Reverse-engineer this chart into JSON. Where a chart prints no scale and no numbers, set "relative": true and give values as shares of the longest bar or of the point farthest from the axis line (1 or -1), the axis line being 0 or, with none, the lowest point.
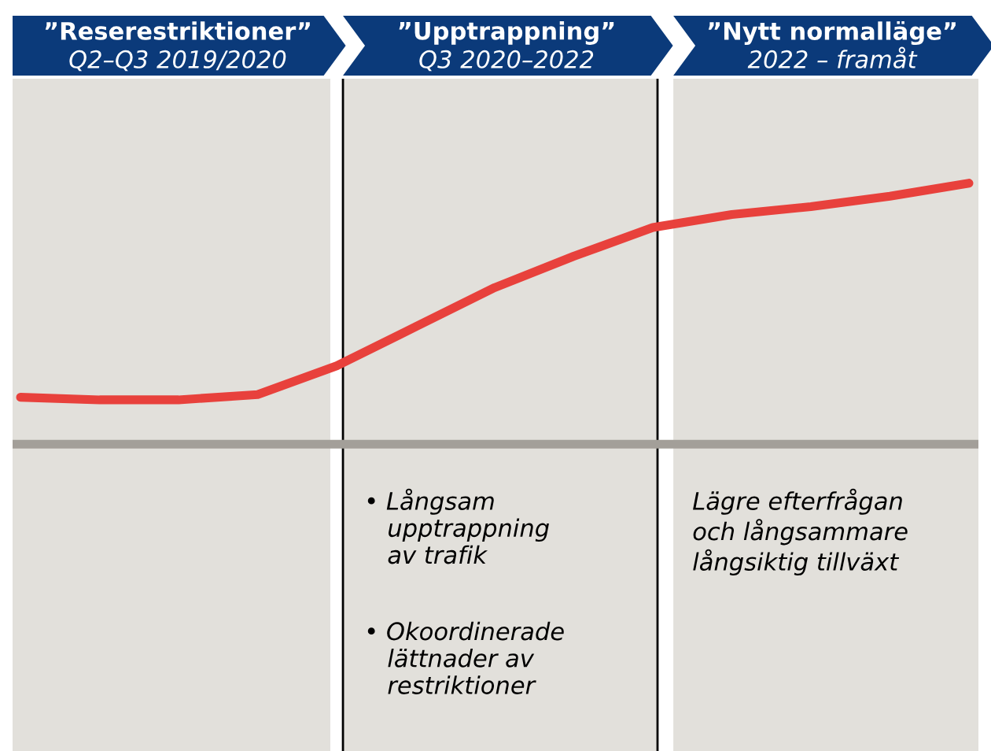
{
  "chart_data": {
    "type": "line",
    "relative": true,
    "grid": false,
    "legend": false,
    "marker": "none",
    "line_style": "solid",
    "categories": [
      null,
      null,
      null,
      null,
      null,
      null,
      null,
      null,
      null,
      null,
      null,
      null,
      null
    ],
    "series": [
      {
        "color": "#e8413c",
        "values": [
          0.18,
          0.17,
          0.17,
          0.19,
          0.3,
          0.45,
          0.6,
          0.72,
          0.83,
          0.88,
          0.91,
          0.95,
          1.0
        ]
      }
    ],
    "annotations": [
      "”Reserestriktioner”\nQ2–Q3 2019/2020",
      "”Upptrappning”\nQ3 2020–2022",
      "”Nytt normalläge”\n2022 – framåt",
      "• Långsam\n   upptrappning\n   av trafik",
      "• Okoordinerade\n   lättnader av\n   restriktioner",
      "Lägre efterfrågan\noch långsammare\nlångsiktig tillväxt"
    ]
  }
}
